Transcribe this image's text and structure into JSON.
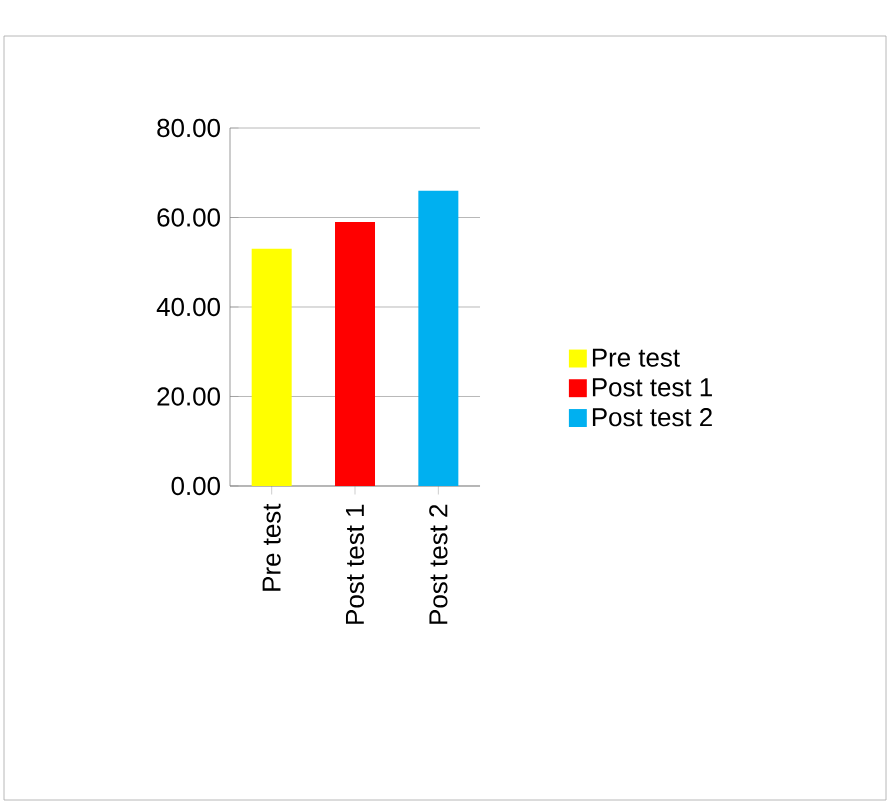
{
  "chart_data": {
    "type": "bar",
    "categories": [
      "Pre test",
      "Post test 1",
      "Post test 2"
    ],
    "series": [
      {
        "name": "Pre test",
        "color": "#ffff00",
        "values": [
          53,
          null,
          null
        ]
      },
      {
        "name": "Post test 1",
        "color": "#ff0000",
        "values": [
          null,
          59,
          null
        ]
      },
      {
        "name": "Post test 2",
        "color": "#00b0f0",
        "values": [
          null,
          null,
          66
        ]
      }
    ],
    "ylim": [
      0,
      80
    ],
    "yticks": [
      {
        "value": 0,
        "label": "0.00"
      },
      {
        "value": 20,
        "label": "20.00"
      },
      {
        "value": 40,
        "label": "40.00"
      },
      {
        "value": 60,
        "label": "60.00"
      },
      {
        "value": 80,
        "label": "80.00"
      }
    ],
    "grid": "y",
    "legend": "right"
  }
}
